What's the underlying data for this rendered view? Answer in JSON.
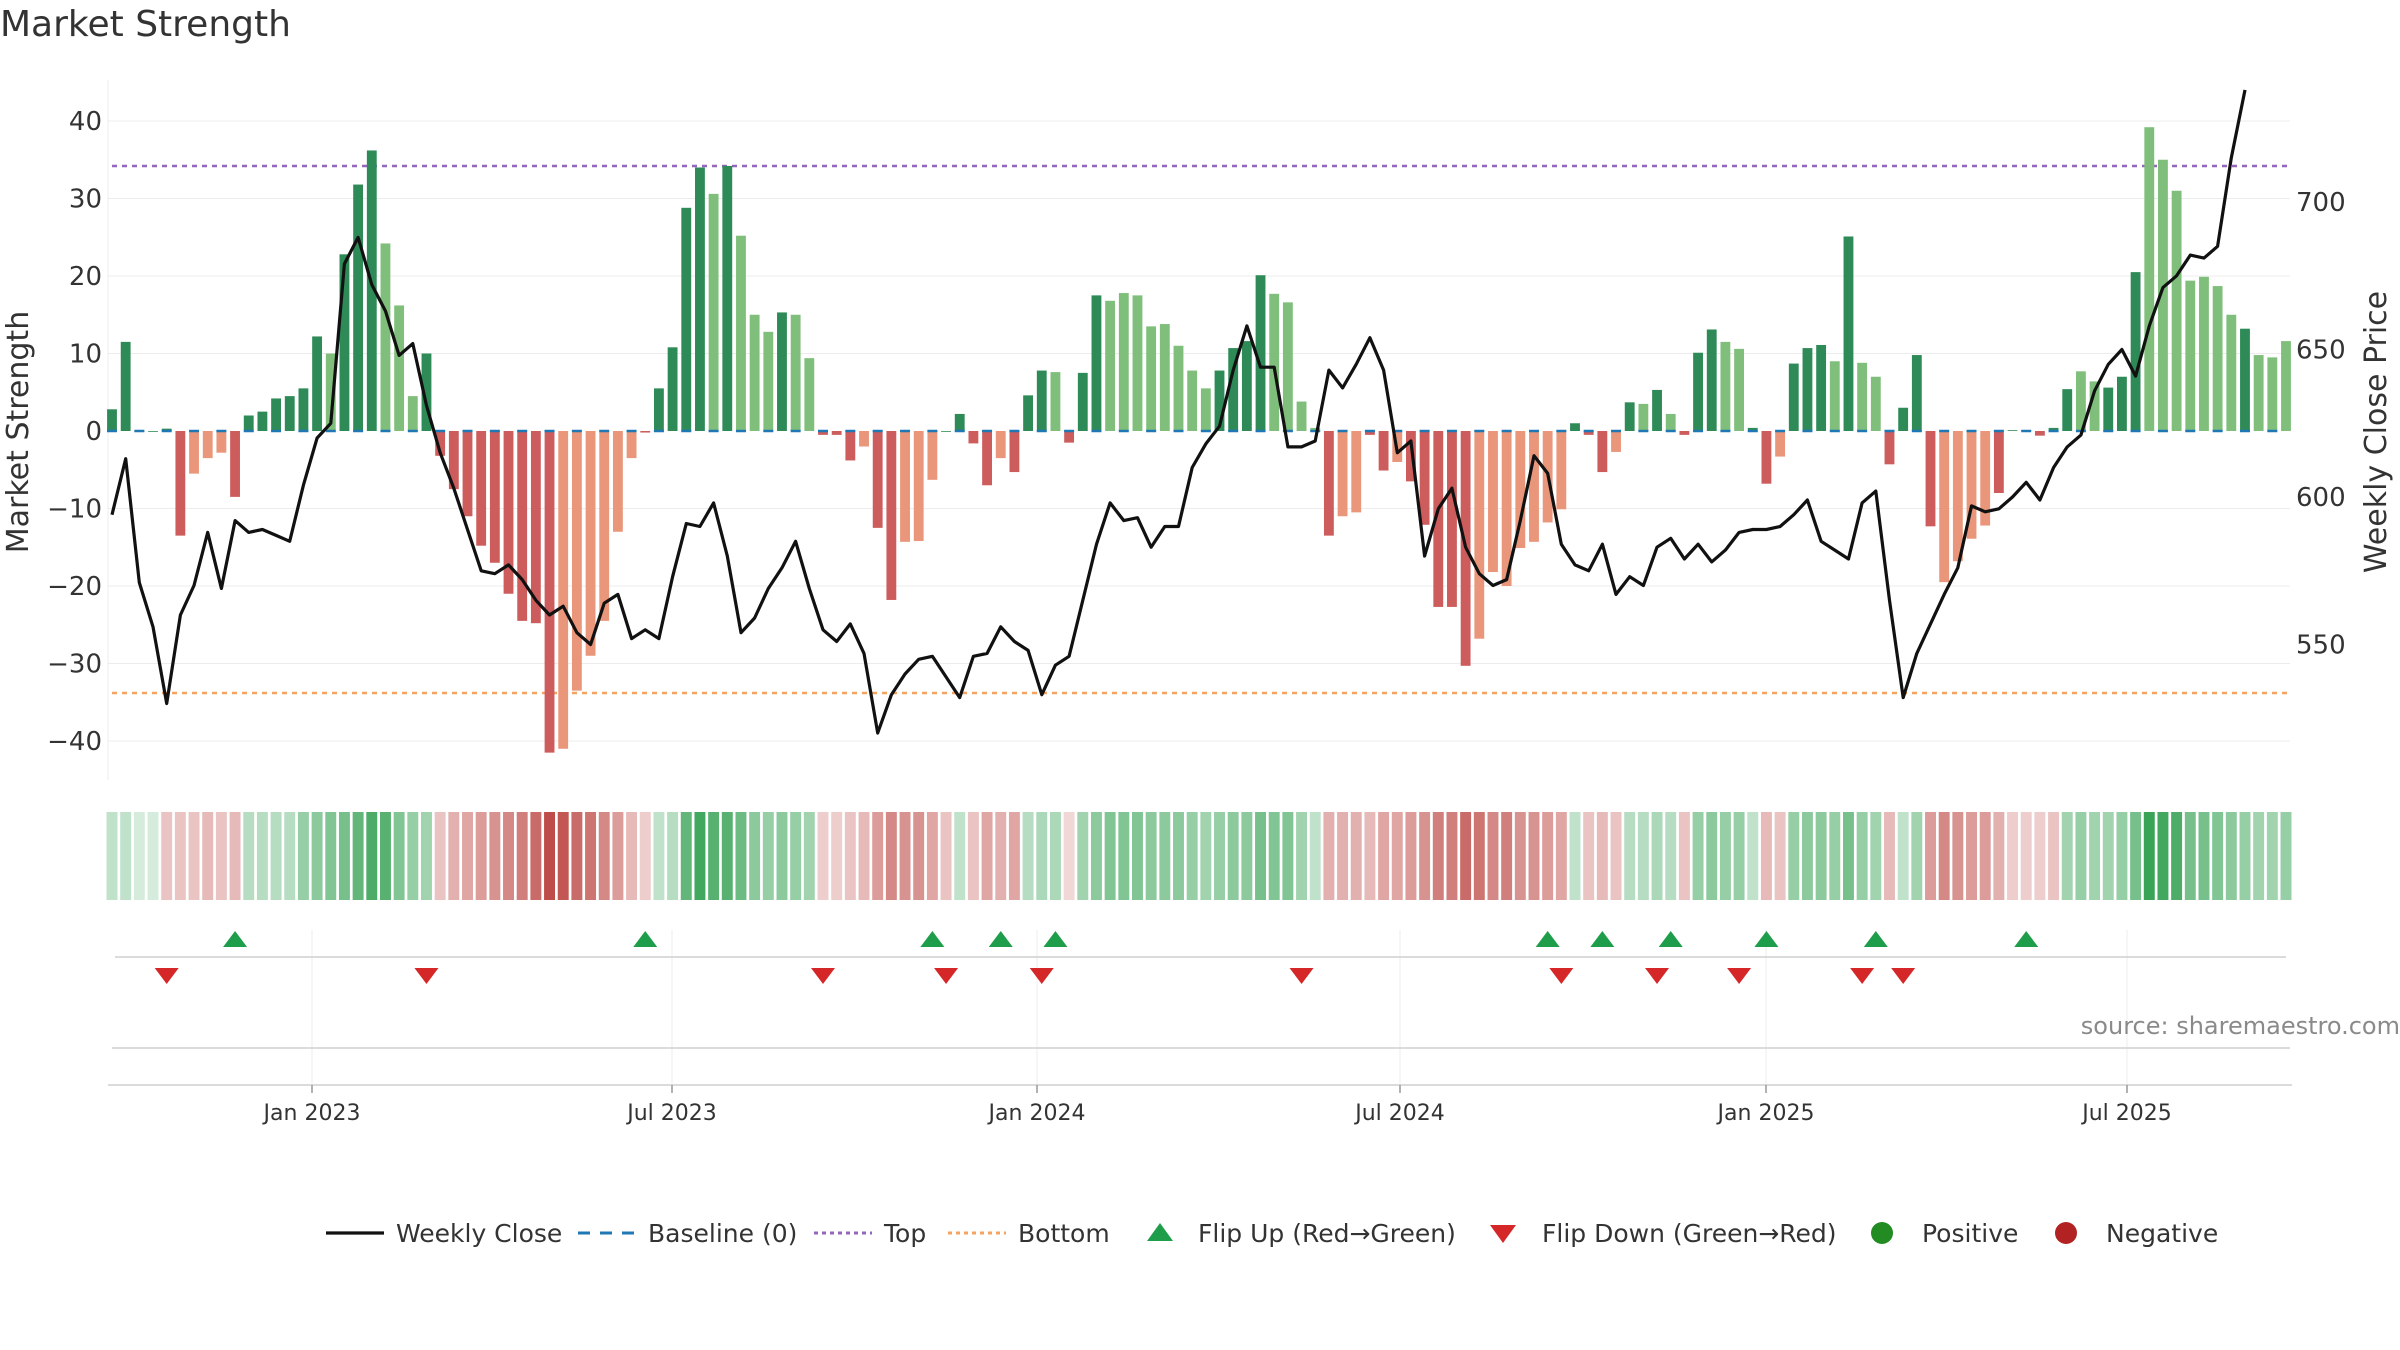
{
  "title": "Market Strength",
  "source": "source: sharemaestro.com",
  "colors": {
    "pos_dark": "#2e8b57",
    "pos_light": "#7fbf7b",
    "neg_dark": "#cd5c5c",
    "neg_light": "#e9967a",
    "line": "#111111",
    "baseline": "#1f77b4",
    "top": "#9467bd",
    "bottom": "#f4a460",
    "flip_up": "#1e9e4a",
    "flip_down": "#d62728",
    "positive": "#228b22",
    "negative": "#b22222"
  },
  "chart_data": {
    "type": "bar",
    "title": "Market Strength",
    "ylabel": "Market Strength",
    "y2label": "Weekly Close Price",
    "ylim": [
      -45,
      45
    ],
    "y2lim": [
      502,
      742
    ],
    "yticks": [
      "40",
      "30",
      "20",
      "10",
      "0",
      "−10",
      "−20",
      "−30",
      "−40"
    ],
    "y2ticks": [
      "700",
      "650",
      "600",
      "550"
    ],
    "xticks": [
      "Jan 2023",
      "Jul 2023",
      "Jan 2024",
      "Jul 2024",
      "Jan 2025",
      "Jul 2025"
    ],
    "top_level": 34.2,
    "bottom_level": -33.8,
    "strength": [
      2.8,
      11.5,
      0,
      0,
      0.3,
      -13.5,
      -5.5,
      -3.5,
      -2.8,
      -8.5,
      2,
      2.5,
      4.2,
      4.5,
      5.5,
      12.2,
      10,
      22.8,
      31.8,
      36.2,
      24.2,
      16.2,
      4.5,
      10,
      -3.2,
      -7.5,
      -11,
      -14.8,
      -17,
      -21,
      -24.5,
      -24.8,
      -41.5,
      -41,
      -33.5,
      -29,
      -24.5,
      -13,
      -3.5,
      -0.2,
      5.5,
      10.8,
      28.8,
      34,
      30.6,
      34.2,
      25.2,
      15,
      12.8,
      15.3,
      15,
      9.4,
      -0.5,
      -0.5,
      -3.8,
      -2,
      -12.5,
      -21.8,
      -14.3,
      -14.2,
      -6.3,
      0,
      2.2,
      -1.6,
      -7,
      -3.5,
      -5.3,
      4.6,
      7.8,
      7.6,
      -1.5,
      7.5,
      17.5,
      16.8,
      17.8,
      17.5,
      13.5,
      13.8,
      11,
      7.8,
      5.5,
      7.8,
      10.7,
      11.6,
      20.1,
      17.7,
      16.6,
      3.8,
      0.4,
      -13.5,
      -11,
      -10.5,
      -0.5,
      -5.1,
      -4,
      -6.5,
      -12.1,
      -22.7,
      -22.7,
      -30.3,
      -26.8,
      -18.2,
      -20,
      -15.1,
      -14.3,
      -11.8,
      -10.1,
      1,
      -0.5,
      -5.3,
      -2.7,
      3.7,
      3.5,
      5.3,
      2.2,
      -0.5,
      10.1,
      13.1,
      11.5,
      10.6,
      0.4,
      -6.8,
      -3.3,
      8.7,
      10.7,
      11.1,
      9,
      25.1,
      8.8,
      7,
      -4.3,
      3,
      9.8,
      -12.3,
      -19.5,
      -16.8,
      -13.9,
      -12.2,
      -8,
      0.1,
      0.1,
      -0.6,
      0.4,
      5.4,
      7.7,
      6.4,
      5.6,
      7,
      20.5,
      39.2,
      35,
      31,
      19.4,
      19.9,
      18.7,
      15,
      13.2,
      9.8,
      9.5,
      11.6
    ],
    "strength_shade": [
      "d",
      "d",
      "d",
      "d",
      "d",
      "d",
      "l",
      "l",
      "l",
      "d",
      "d",
      "d",
      "d",
      "d",
      "d",
      "d",
      "l",
      "d",
      "d",
      "d",
      "l",
      "l",
      "l",
      "d",
      "d",
      "d",
      "d",
      "d",
      "d",
      "d",
      "d",
      "d",
      "d",
      "l",
      "l",
      "l",
      "l",
      "l",
      "l",
      "d",
      "d",
      "d",
      "d",
      "d",
      "l",
      "d",
      "l",
      "l",
      "l",
      "d",
      "l",
      "l",
      "d",
      "d",
      "d",
      "l",
      "d",
      "d",
      "l",
      "l",
      "l",
      "d",
      "d",
      "d",
      "d",
      "l",
      "d",
      "d",
      "d",
      "l",
      "d",
      "d",
      "d",
      "l",
      "l",
      "l",
      "l",
      "l",
      "l",
      "l",
      "l",
      "d",
      "d",
      "d",
      "d",
      "l",
      "l",
      "l",
      "l",
      "d",
      "l",
      "l",
      "d",
      "d",
      "l",
      "d",
      "d",
      "d",
      "d",
      "d",
      "l",
      "l",
      "l",
      "l",
      "l",
      "l",
      "l",
      "d",
      "d",
      "d",
      "l",
      "d",
      "l",
      "d",
      "l",
      "d",
      "d",
      "d",
      "l",
      "l",
      "d",
      "d",
      "l",
      "d",
      "d",
      "d",
      "l",
      "d",
      "l",
      "l",
      "d",
      "d",
      "d",
      "d",
      "l",
      "l",
      "l",
      "l",
      "d",
      "d",
      "d",
      "d",
      "d",
      "d",
      "l",
      "l",
      "d",
      "d",
      "d",
      "l",
      "l",
      "l",
      "l",
      "l",
      "l",
      "l",
      "d"
    ],
    "weekly_close": [
      594,
      613,
      571,
      556,
      530,
      560,
      570,
      588,
      569,
      592,
      588,
      589,
      587,
      585,
      604,
      620,
      625,
      679,
      688,
      672,
      663,
      648,
      652,
      631,
      615,
      603,
      589,
      575,
      574,
      577,
      572,
      565,
      560,
      563,
      554,
      550,
      564,
      567,
      552,
      555,
      552,
      573,
      591,
      590,
      598,
      580,
      554,
      559,
      569,
      576,
      585,
      569,
      555,
      551,
      557,
      547,
      520,
      533,
      540,
      545,
      546,
      539,
      532,
      546,
      547,
      556,
      551,
      548,
      533,
      543,
      546,
      565,
      584,
      598,
      592,
      593,
      583,
      590,
      590,
      610,
      618,
      624,
      643,
      658,
      644,
      644,
      617,
      617,
      619,
      643,
      637,
      645,
      654,
      643,
      615,
      619,
      580,
      596,
      603,
      583,
      574,
      570,
      572,
      592,
      614,
      608,
      584,
      577,
      575,
      584,
      567,
      573,
      570,
      583,
      586,
      579,
      584,
      578,
      582,
      588,
      589,
      589,
      590,
      594,
      599,
      585,
      582,
      579,
      598,
      602,
      565,
      532,
      547,
      557,
      567,
      576,
      597,
      595,
      596,
      600,
      605,
      599,
      610,
      617,
      621,
      636,
      645,
      650,
      641,
      658,
      671,
      675,
      682,
      681,
      685,
      715,
      738
    ],
    "heat": [
      0.3,
      0.3,
      0.2,
      0.2,
      0.3,
      0.3,
      0.3,
      0.35,
      0.3,
      0.35,
      0.35,
      0.35,
      0.35,
      0.35,
      0.5,
      0.55,
      0.6,
      0.65,
      0.75,
      0.85,
      0.8,
      0.6,
      0.5,
      0.45,
      0.3,
      0.4,
      0.45,
      0.5,
      0.55,
      0.6,
      0.65,
      0.75,
      0.9,
      0.85,
      0.75,
      0.7,
      0.6,
      0.5,
      0.35,
      0.25,
      0.3,
      0.35,
      0.75,
      0.9,
      0.8,
      0.8,
      0.7,
      0.55,
      0.5,
      0.55,
      0.5,
      0.45,
      0.25,
      0.25,
      0.3,
      0.35,
      0.5,
      0.6,
      0.55,
      0.55,
      0.45,
      0.3,
      0.3,
      0.3,
      0.45,
      0.4,
      0.45,
      0.35,
      0.4,
      0.4,
      0.2,
      0.45,
      0.55,
      0.6,
      0.6,
      0.6,
      0.55,
      0.55,
      0.55,
      0.5,
      0.45,
      0.5,
      0.55,
      0.55,
      0.65,
      0.6,
      0.6,
      0.45,
      0.3,
      0.4,
      0.4,
      0.4,
      0.35,
      0.45,
      0.45,
      0.5,
      0.55,
      0.65,
      0.65,
      0.75,
      0.7,
      0.6,
      0.65,
      0.55,
      0.55,
      0.5,
      0.45,
      0.3,
      0.3,
      0.35,
      0.3,
      0.35,
      0.35,
      0.4,
      0.35,
      0.3,
      0.5,
      0.55,
      0.5,
      0.5,
      0.3,
      0.35,
      0.3,
      0.5,
      0.55,
      0.55,
      0.5,
      0.65,
      0.5,
      0.45,
      0.35,
      0.3,
      0.45,
      0.5,
      0.6,
      0.55,
      0.5,
      0.5,
      0.4,
      0.25,
      0.25,
      0.25,
      0.3,
      0.45,
      0.5,
      0.45,
      0.45,
      0.5,
      0.65,
      0.95,
      0.9,
      0.85,
      0.65,
      0.65,
      0.6,
      0.55,
      0.5,
      0.45,
      0.45,
      0.5
    ],
    "heat_sign": [
      1,
      1,
      1,
      1,
      -1,
      -1,
      -1,
      -1,
      -1,
      -1,
      1,
      1,
      1,
      1,
      1,
      1,
      1,
      1,
      1,
      1,
      1,
      1,
      1,
      1,
      -1,
      -1,
      -1,
      -1,
      -1,
      -1,
      -1,
      -1,
      -1,
      -1,
      -1,
      -1,
      -1,
      -1,
      -1,
      -1,
      1,
      1,
      1,
      1,
      1,
      1,
      1,
      1,
      1,
      1,
      1,
      1,
      -1,
      -1,
      -1,
      -1,
      -1,
      -1,
      -1,
      -1,
      -1,
      -1,
      1,
      -1,
      -1,
      -1,
      -1,
      1,
      1,
      1,
      -1,
      1,
      1,
      1,
      1,
      1,
      1,
      1,
      1,
      1,
      1,
      1,
      1,
      1,
      1,
      1,
      1,
      1,
      1,
      -1,
      -1,
      -1,
      -1,
      -1,
      -1,
      -1,
      -1,
      -1,
      -1,
      -1,
      -1,
      -1,
      -1,
      -1,
      -1,
      -1,
      -1,
      1,
      -1,
      -1,
      -1,
      1,
      1,
      1,
      1,
      -1,
      1,
      1,
      1,
      1,
      1,
      -1,
      -1,
      1,
      1,
      1,
      1,
      1,
      1,
      1,
      -1,
      1,
      1,
      -1,
      -1,
      -1,
      -1,
      -1,
      -1,
      -1,
      -1,
      -1,
      -1,
      1,
      1,
      1,
      1,
      1,
      1,
      1,
      1,
      1,
      1,
      1,
      1,
      1,
      1,
      1,
      1,
      1,
      1
    ],
    "flip_up_weeks": [
      9,
      39,
      60,
      65,
      69,
      105,
      109,
      114,
      121,
      129,
      140
    ],
    "flip_down_weeks": [
      4,
      23,
      52,
      61,
      68,
      87,
      106,
      113,
      119,
      128,
      131
    ],
    "legend": [
      "Weekly Close",
      "Baseline (0)",
      "Top",
      "Bottom",
      "Flip Up (Red→Green)",
      "Flip Down (Green→Red)",
      "Positive",
      "Negative"
    ]
  }
}
